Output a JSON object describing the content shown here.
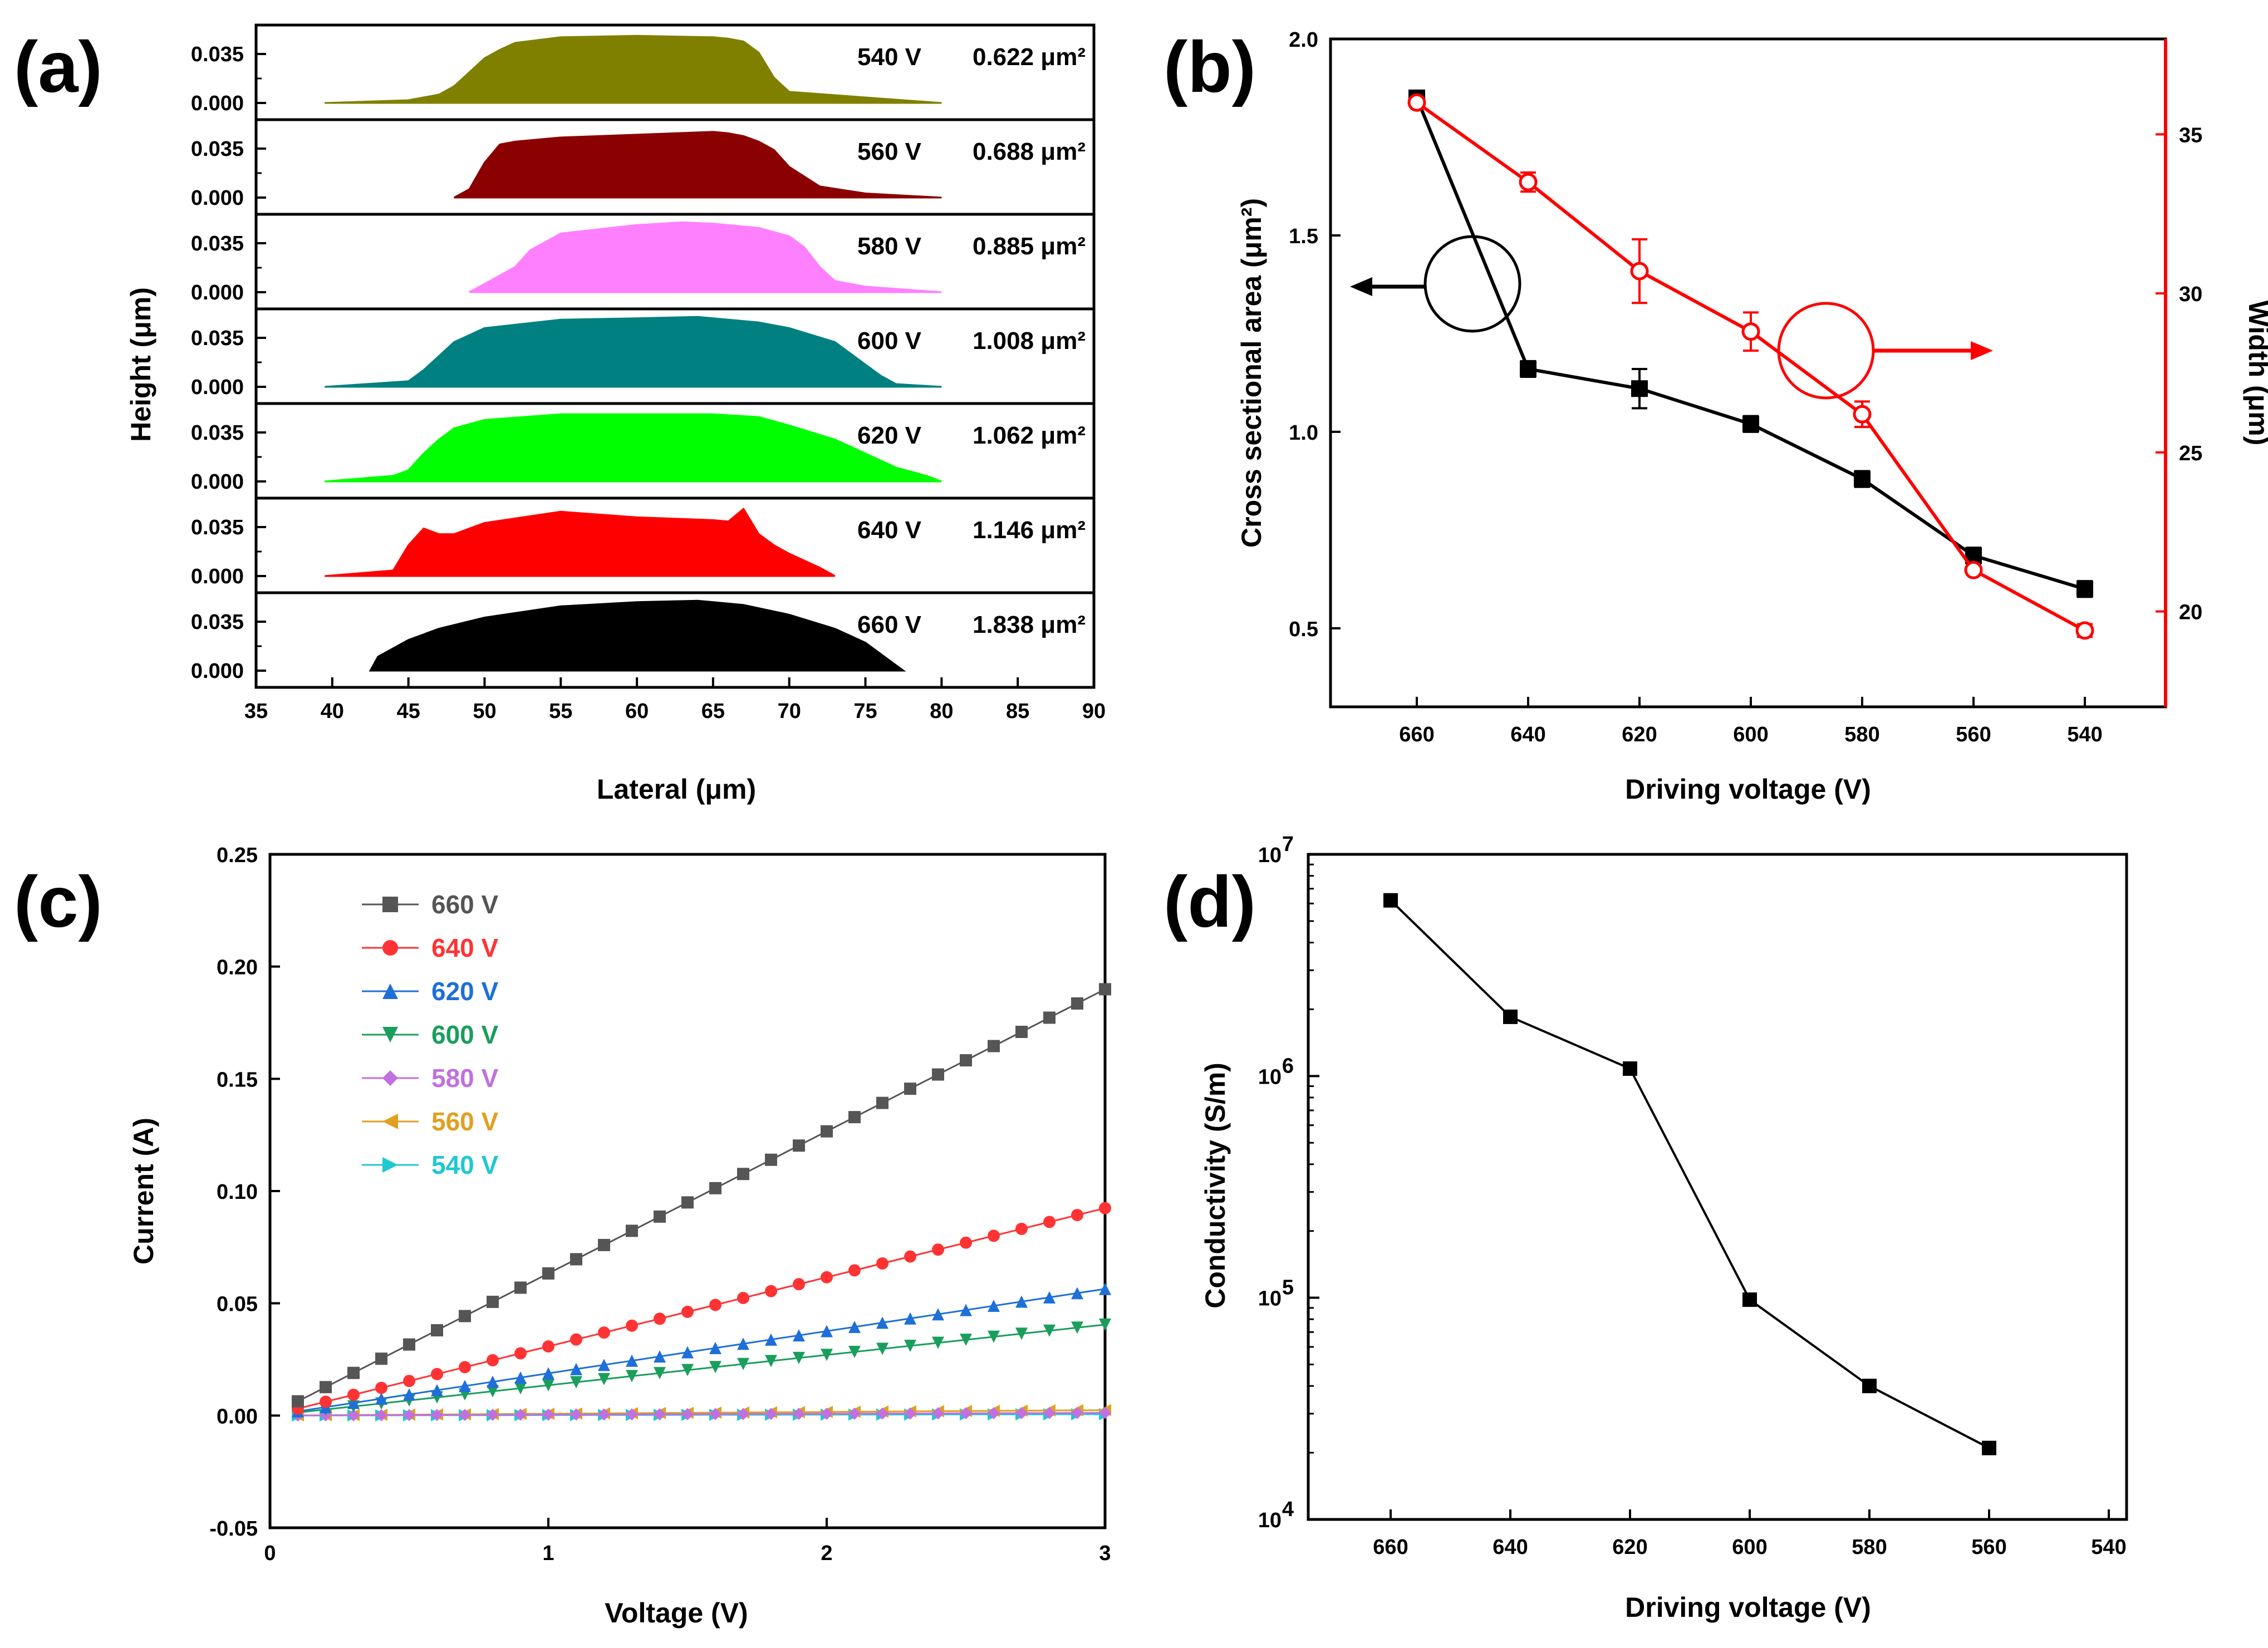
{
  "panels": [
    {
      "letter": "(a)"
    },
    {
      "letter": "(b)"
    },
    {
      "letter": "(c)"
    },
    {
      "letter": "(d)"
    }
  ],
  "chart_data": [
    {
      "panel": "(a)",
      "type": "area",
      "xlabel": "Lateral (μm)",
      "ylabel": "Height (μm)",
      "xlim": [
        35,
        90
      ],
      "x_ticks": [
        "35",
        "40",
        "45",
        "50",
        "55",
        "60",
        "65",
        "70",
        "75",
        "80",
        "85",
        "90"
      ],
      "y_ticks": [
        "0.000",
        "0.035"
      ],
      "series": [
        {
          "voltage": "540 V",
          "area": "0.622 μm²",
          "color": "#808000",
          "x": [
            39.5,
            45,
            47,
            48,
            49,
            50,
            51,
            52,
            55,
            60,
            65,
            66,
            67,
            68,
            69,
            70,
            80
          ],
          "y": [
            0.0,
            0.002,
            0.006,
            0.012,
            0.022,
            0.032,
            0.038,
            0.043,
            0.047,
            0.048,
            0.047,
            0.046,
            0.044,
            0.036,
            0.018,
            0.008,
            0.0
          ]
        },
        {
          "voltage": "560 V",
          "area": "0.688 μm²",
          "color": "#8B0000",
          "x": [
            48,
            49,
            50,
            51,
            52,
            55,
            60,
            65,
            66,
            67,
            68,
            69,
            70,
            72,
            75,
            80
          ],
          "y": [
            0.0,
            0.006,
            0.025,
            0.038,
            0.04,
            0.043,
            0.045,
            0.047,
            0.046,
            0.044,
            0.04,
            0.034,
            0.022,
            0.008,
            0.003,
            0.0
          ]
        },
        {
          "voltage": "580 V",
          "area": "0.885 μm²",
          "color": "#FF80FF",
          "x": [
            49,
            50,
            51,
            52,
            53,
            55,
            60,
            63,
            65,
            68,
            70,
            71,
            72,
            73,
            75,
            80
          ],
          "y": [
            0.0,
            0.006,
            0.012,
            0.018,
            0.03,
            0.042,
            0.048,
            0.05,
            0.049,
            0.046,
            0.04,
            0.032,
            0.018,
            0.008,
            0.004,
            0.0
          ]
        },
        {
          "voltage": "600 V",
          "area": "1.008 μm²",
          "color": "#008080",
          "x": [
            39.5,
            45,
            46,
            47,
            48,
            50,
            55,
            60,
            64,
            65,
            68,
            70,
            73,
            75,
            76,
            77,
            80
          ],
          "y": [
            0.0,
            0.004,
            0.012,
            0.022,
            0.032,
            0.042,
            0.048,
            0.049,
            0.05,
            0.049,
            0.046,
            0.042,
            0.032,
            0.016,
            0.008,
            0.002,
            0.0
          ]
        },
        {
          "voltage": "620 V",
          "area": "1.062 μm²",
          "color": "#00FF00",
          "x": [
            39.5,
            44,
            45,
            46,
            47,
            48,
            50,
            55,
            60,
            65,
            68,
            70,
            73,
            75,
            77,
            79,
            80
          ],
          "y": [
            0.0,
            0.004,
            0.008,
            0.02,
            0.03,
            0.038,
            0.044,
            0.048,
            0.048,
            0.048,
            0.046,
            0.04,
            0.03,
            0.02,
            0.01,
            0.004,
            0.0
          ]
        },
        {
          "voltage": "640 V",
          "area": "1.146 μm²",
          "color": "#FF0000",
          "x": [
            39.5,
            44,
            45,
            46,
            47,
            48,
            49,
            50,
            55,
            60,
            65,
            66,
            67,
            68,
            69,
            70,
            72,
            73
          ],
          "y": [
            0.0,
            0.004,
            0.022,
            0.034,
            0.03,
            0.03,
            0.034,
            0.038,
            0.046,
            0.042,
            0.04,
            0.039,
            0.048,
            0.03,
            0.022,
            0.016,
            0.006,
            0.0
          ]
        },
        {
          "voltage": "660 V",
          "area": "1.838 μm²",
          "color": "#000000",
          "x": [
            42.5,
            43,
            45,
            47,
            50,
            55,
            60,
            64,
            65,
            67,
            70,
            73,
            75,
            76,
            77,
            77.5
          ],
          "y": [
            0.0,
            0.01,
            0.022,
            0.03,
            0.038,
            0.046,
            0.049,
            0.05,
            0.049,
            0.047,
            0.04,
            0.03,
            0.02,
            0.012,
            0.004,
            0.0
          ]
        }
      ]
    },
    {
      "panel": "(b)",
      "type": "line",
      "xlabel": "Driving voltage (V)",
      "ylabel_left": "Cross sectional area (μm²)",
      "ylabel_right": "Width (μm)",
      "x_categories": [
        "660",
        "640",
        "620",
        "600",
        "580",
        "560",
        "540"
      ],
      "y_left_ticks": [
        "0.5",
        "1.0",
        "1.5",
        "2.0"
      ],
      "y_left_lim": [
        0.3,
        2.0
      ],
      "y_right_ticks": [
        "20",
        "25",
        "30",
        "35"
      ],
      "y_right_lim": [
        17,
        38
      ],
      "series": [
        {
          "name": "Cross sectional area",
          "axis": "left",
          "color": "#000000",
          "values": [
            1.85,
            1.16,
            1.11,
            1.02,
            0.88,
            0.685,
            0.6
          ],
          "errors": [
            0.01,
            0.02,
            0.05,
            0.02,
            0.02,
            0.02,
            0.02
          ]
        },
        {
          "name": "Width",
          "axis": "right",
          "color": "#FF0000",
          "values": [
            36.0,
            33.5,
            30.7,
            28.8,
            26.2,
            21.3,
            19.4
          ],
          "errors": [
            0.1,
            0.3,
            1.0,
            0.6,
            0.4,
            0.1,
            0.2
          ]
        }
      ]
    },
    {
      "panel": "(c)",
      "type": "scatter",
      "xlabel": "Voltage (V)",
      "ylabel": "Current (A)",
      "xlim": [
        0,
        3
      ],
      "ylim": [
        -0.05,
        0.25
      ],
      "x_ticks": [
        "0",
        "1",
        "2",
        "3"
      ],
      "y_ticks": [
        "-0.05",
        "0.00",
        "0.05",
        "0.10",
        "0.15",
        "0.20",
        "0.25"
      ],
      "series": [
        {
          "name": "660 V",
          "color": "#555555",
          "marker": "square",
          "slope": 0.0633
        },
        {
          "name": "640 V",
          "color": "#FF3333",
          "marker": "circle",
          "slope": 0.0308
        },
        {
          "name": "620 V",
          "color": "#1E6FD9",
          "marker": "triangle-up",
          "slope": 0.0188
        },
        {
          "name": "600 V",
          "color": "#1A9E5C",
          "marker": "triangle-down",
          "slope": 0.0135
        },
        {
          "name": "580 V",
          "color": "#C070E0",
          "marker": "diamond",
          "slope": 0.0004
        },
        {
          "name": "560 V",
          "color": "#E0A020",
          "marker": "triangle-left",
          "slope": 0.0008
        },
        {
          "name": "540 V",
          "color": "#20C8D0",
          "marker": "triangle-right",
          "slope": 0.0002
        }
      ]
    },
    {
      "panel": "(d)",
      "type": "line",
      "xlabel": "Driving voltage (V)",
      "ylabel": "Conductivity (S/m)",
      "y_scale": "log",
      "ylim": [
        10000,
        10000000
      ],
      "x_ticks": [
        "660",
        "640",
        "620",
        "600",
        "580",
        "560",
        "540"
      ],
      "y_ticks": [
        {
          "base": "10",
          "exp": "4"
        },
        {
          "base": "10",
          "exp": "5"
        },
        {
          "base": "10",
          "exp": "6"
        },
        {
          "base": "10",
          "exp": "7"
        }
      ],
      "categories": [
        "660",
        "640",
        "620",
        "600",
        "580",
        "560"
      ],
      "values": [
        6200000,
        1850000,
        1080000,
        98000,
        40000,
        21000
      ]
    }
  ]
}
